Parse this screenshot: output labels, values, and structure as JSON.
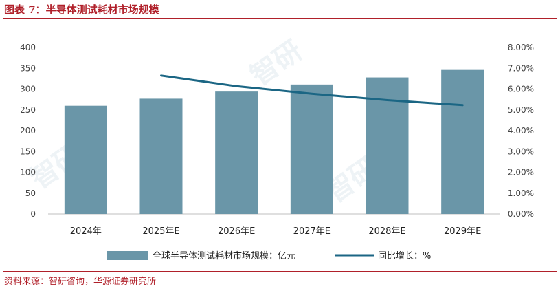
{
  "header": {
    "title": "图表 7：半导体测试耗材市场规模"
  },
  "footer": {
    "source": "资料来源：智研咨询，华源证券研究所"
  },
  "chart_data": {
    "type": "bar",
    "categories": [
      "2024年",
      "2025年E",
      "2026年E",
      "2027年E",
      "2028年E",
      "2029年E"
    ],
    "series": [
      {
        "name": "全球半导体测试耗材市场规模：亿元",
        "type": "bar",
        "axis": "left",
        "values": [
          260,
          277,
          294,
          311,
          328,
          346
        ],
        "color": "#6a96a8"
      },
      {
        "name": "同比增长：%",
        "type": "line",
        "axis": "right",
        "values": [
          null,
          6.65,
          6.14,
          5.78,
          5.47,
          5.23
        ],
        "color": "#1b6684"
      }
    ],
    "y_left": {
      "min": 0,
      "max": 400,
      "step": 50,
      "ticks": [
        "0",
        "50",
        "100",
        "150",
        "200",
        "250",
        "300",
        "350",
        "400"
      ]
    },
    "y_right": {
      "min": 0,
      "max": 8,
      "step": 1,
      "ticks": [
        "0.00%",
        "1.00%",
        "2.00%",
        "3.00%",
        "4.00%",
        "5.00%",
        "6.00%",
        "7.00%",
        "8.00%"
      ]
    },
    "grid": false,
    "legend": "bottom"
  }
}
